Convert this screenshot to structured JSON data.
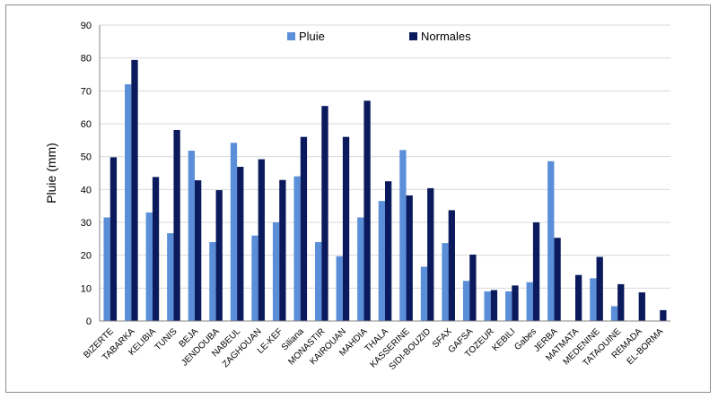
{
  "chart_data": {
    "type": "bar",
    "ylabel": "Pluie (mm)",
    "ylim": [
      0,
      90
    ],
    "yticks": [
      0,
      10,
      20,
      30,
      40,
      50,
      60,
      70,
      80,
      90
    ],
    "grid": true,
    "legend_position": "top-center",
    "categories": [
      "BIZERTE",
      "TABARKA",
      "KELIBIA",
      "TUNIS",
      "BEJA",
      "JENDOUBA",
      "NABEUL",
      "ZAGHOUAN",
      "LE-KEF",
      "Siliana",
      "MONASTIR",
      "KAIROUAN",
      "MAHDIA",
      "THALA",
      "KASSERINE",
      "SIDI-BOUZID",
      "SFAX",
      "GAFSA",
      "TOZEUR",
      "KEBILI",
      "Gabes",
      "JERBA",
      "MATMATA",
      "MEDENINE",
      "TATAOUINE",
      "REMADA",
      "EL-BORMA"
    ],
    "series": [
      {
        "name": "Pluie",
        "color": "#5a8ed8",
        "values": [
          31.5,
          72,
          33,
          26.7,
          51.8,
          24,
          54.2,
          26,
          30,
          44,
          24,
          19.7,
          31.5,
          36.5,
          52,
          16.5,
          23.7,
          12.2,
          9,
          9,
          11.8,
          48.6,
          0,
          13,
          4.5,
          0,
          0
        ]
      },
      {
        "name": "Normales",
        "color": "#0a1a5c",
        "values": [
          49.8,
          79.4,
          43.8,
          58.1,
          42.8,
          39.8,
          46.9,
          49.2,
          42.9,
          56,
          65.4,
          56,
          67,
          42.5,
          38.2,
          40.4,
          33.7,
          20.2,
          9.4,
          10.8,
          30,
          25.3,
          14,
          19.5,
          11.2,
          8.7,
          3.3
        ]
      }
    ]
  }
}
